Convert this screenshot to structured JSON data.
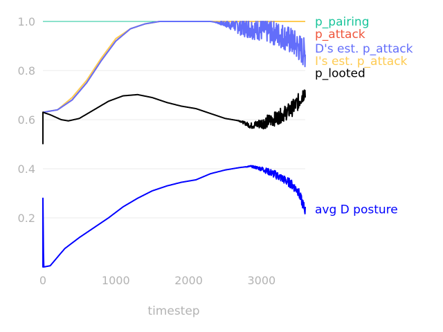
{
  "chart_data": {
    "type": "line",
    "xlabel": "timestep",
    "ylabel": "",
    "xlim": [
      0,
      3600
    ],
    "ylim": [
      0.0,
      1.0
    ],
    "grid": "horizontal",
    "legend": "inline-right",
    "x_ticks": [
      {
        "value": 0,
        "label": "0"
      },
      {
        "value": 1000,
        "label": "1000"
      },
      {
        "value": 2000,
        "label": "2000"
      },
      {
        "value": 3000,
        "label": "3000"
      }
    ],
    "y_ticks": [
      {
        "value": 0.2,
        "label": "0.2"
      },
      {
        "value": 0.4,
        "label": "0.4"
      },
      {
        "value": 0.6,
        "label": "0.6"
      },
      {
        "value": 0.8,
        "label": "0.8"
      },
      {
        "value": 1.0,
        "label": "1.0"
      }
    ],
    "series": [
      {
        "name": "p_pairing",
        "color": "#19c49a",
        "points": [
          [
            0,
            1.0
          ],
          [
            3600,
            1.0
          ]
        ]
      },
      {
        "name": "p_attack",
        "color": "#ef553b",
        "points": [
          [
            0,
            0.63
          ],
          [
            200,
            0.64
          ],
          [
            400,
            0.68
          ],
          [
            600,
            0.75
          ],
          [
            800,
            0.84
          ],
          [
            1000,
            0.92
          ],
          [
            1200,
            0.97
          ],
          [
            1400,
            0.99
          ],
          [
            1600,
            1.0
          ],
          [
            3600,
            1.0
          ]
        ]
      },
      {
        "name": "D's est. p_attack",
        "color": "#636efa",
        "points": [
          [
            0,
            0.63
          ],
          [
            200,
            0.64
          ],
          [
            400,
            0.68
          ],
          [
            600,
            0.75
          ],
          [
            800,
            0.84
          ],
          [
            1000,
            0.92
          ],
          [
            1200,
            0.97
          ],
          [
            1400,
            0.99
          ],
          [
            1600,
            1.0
          ],
          [
            2300,
            1.0
          ],
          [
            2500,
            0.99
          ],
          [
            2700,
            0.98
          ],
          [
            2900,
            0.97
          ],
          [
            3100,
            0.96
          ],
          [
            3300,
            0.94
          ],
          [
            3450,
            0.91
          ],
          [
            3600,
            0.87
          ]
        ]
      },
      {
        "name": "I's est. p_attack",
        "color": "#fecb52",
        "points": [
          [
            0,
            0.63
          ],
          [
            200,
            0.64
          ],
          [
            400,
            0.69
          ],
          [
            600,
            0.76
          ],
          [
            800,
            0.85
          ],
          [
            1000,
            0.93
          ],
          [
            1200,
            0.97
          ],
          [
            1400,
            0.99
          ],
          [
            1600,
            1.0
          ],
          [
            3600,
            1.0
          ]
        ]
      },
      {
        "name": "p_looted",
        "color": "#000000",
        "points": [
          [
            0,
            0.63
          ],
          [
            100,
            0.62
          ],
          [
            250,
            0.6
          ],
          [
            350,
            0.595
          ],
          [
            500,
            0.605
          ],
          [
            700,
            0.64
          ],
          [
            900,
            0.675
          ],
          [
            1100,
            0.697
          ],
          [
            1300,
            0.702
          ],
          [
            1500,
            0.69
          ],
          [
            1700,
            0.67
          ],
          [
            1900,
            0.655
          ],
          [
            2100,
            0.645
          ],
          [
            2300,
            0.625
          ],
          [
            2500,
            0.605
          ],
          [
            2700,
            0.595
          ],
          [
            2850,
            0.575
          ],
          [
            3000,
            0.585
          ],
          [
            3200,
            0.605
          ],
          [
            3400,
            0.64
          ],
          [
            3500,
            0.67
          ],
          [
            3600,
            0.72
          ]
        ]
      },
      {
        "name": "avg D posture",
        "color": "#0000ff",
        "points": [
          [
            0,
            0.28
          ],
          [
            10,
            0.0
          ],
          [
            100,
            0.005
          ],
          [
            200,
            0.04
          ],
          [
            300,
            0.075
          ],
          [
            500,
            0.12
          ],
          [
            700,
            0.16
          ],
          [
            900,
            0.2
          ],
          [
            1100,
            0.245
          ],
          [
            1300,
            0.28
          ],
          [
            1500,
            0.31
          ],
          [
            1700,
            0.33
          ],
          [
            1900,
            0.345
          ],
          [
            2100,
            0.355
          ],
          [
            2300,
            0.38
          ],
          [
            2500,
            0.395
          ],
          [
            2700,
            0.405
          ],
          [
            2850,
            0.41
          ],
          [
            3000,
            0.4
          ],
          [
            3200,
            0.375
          ],
          [
            3400,
            0.34
          ],
          [
            3500,
            0.31
          ],
          [
            3550,
            0.27
          ],
          [
            3600,
            0.23
          ]
        ]
      }
    ],
    "noise": {
      "p_looted": {
        "start": 2650,
        "amp": 0.02
      },
      "D's est. p_attack": {
        "start": 2350,
        "amp": 0.03
      },
      "avg D posture": {
        "start": 2750,
        "amp": 0.012
      }
    },
    "labels": [
      {
        "text": "p_pairing",
        "color": "#19c49a",
        "y": 1.0
      },
      {
        "text": "p_attack",
        "color": "#ef553b",
        "y": 0.95
      },
      {
        "text": "D's est. p_attack",
        "color": "#636efa",
        "y": 0.89
      },
      {
        "text": "I's est. p_attack",
        "color": "#fecb52",
        "y": 0.84
      },
      {
        "text": "p_looted",
        "color": "#000000",
        "y": 0.79
      },
      {
        "text": "avg D posture",
        "color": "#0000ff",
        "y": 0.235
      }
    ]
  }
}
